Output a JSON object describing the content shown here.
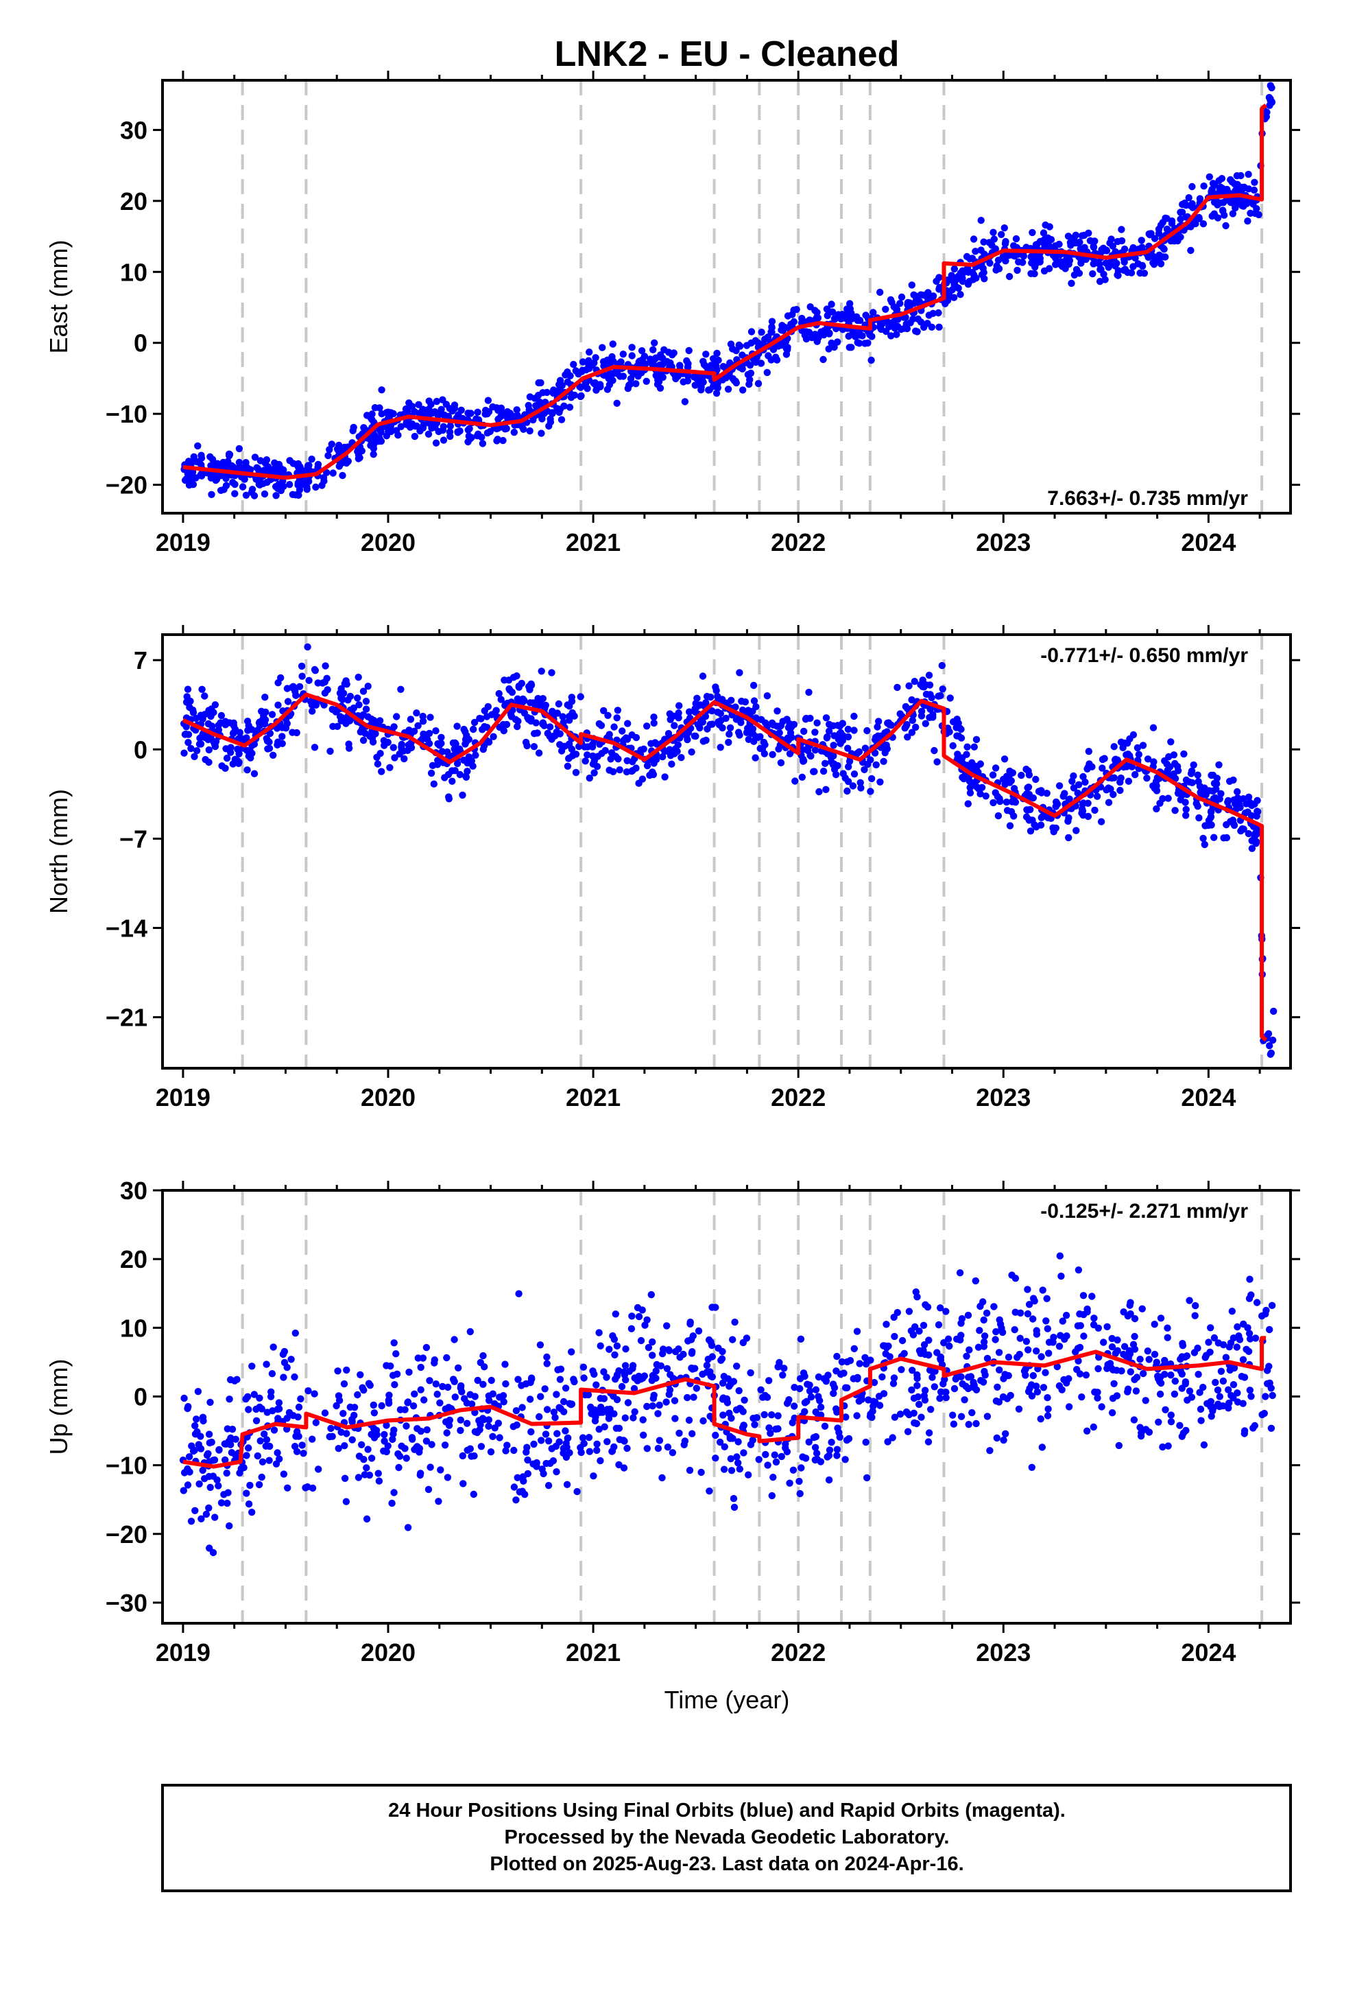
{
  "chart_data": [
    {
      "type": "scatter",
      "component": "east",
      "title": "LNK2  - EU - Cleaned",
      "ylabel": "East (mm)",
      "xlim": [
        2018.9,
        2024.4
      ],
      "ylim": [
        -24,
        37
      ],
      "yticks": [
        -20,
        -10,
        0,
        10,
        20,
        30
      ],
      "xticks": [
        2019,
        2020,
        2021,
        2022,
        2023,
        2024
      ],
      "rate_label": "7.663+/- 0.735 mm/yr",
      "rate_position": "bottom-right",
      "dashed_lines": [
        2019.29,
        2019.6,
        2020.94,
        2021.59,
        2021.81,
        2022.0,
        2022.21,
        2022.35,
        2022.71,
        2024.26
      ],
      "model_line": [
        [
          2019.0,
          -17.5
        ],
        [
          2019.3,
          -18.4
        ],
        [
          2019.5,
          -19.0
        ],
        [
          2019.65,
          -18.5
        ],
        [
          2019.8,
          -15.5
        ],
        [
          2019.95,
          -11.5
        ],
        [
          2020.1,
          -10.4
        ],
        [
          2020.3,
          -11.0
        ],
        [
          2020.5,
          -11.6
        ],
        [
          2020.65,
          -11.0
        ],
        [
          2020.8,
          -8.5
        ],
        [
          2020.95,
          -5.0
        ],
        [
          2021.1,
          -3.4
        ],
        [
          2021.3,
          -3.7
        ],
        [
          2021.59,
          -4.3
        ],
        [
          2021.59,
          -5.2
        ],
        [
          2021.7,
          -3.0
        ],
        [
          2021.85,
          -0.5
        ],
        [
          2022.0,
          2.2
        ],
        [
          2022.1,
          2.8
        ],
        [
          2022.35,
          2.0
        ],
        [
          2022.35,
          3.2
        ],
        [
          2022.5,
          4.0
        ],
        [
          2022.71,
          6.3
        ],
        [
          2022.71,
          11.2
        ],
        [
          2022.85,
          11.0
        ],
        [
          2023.0,
          13.0
        ],
        [
          2023.3,
          12.8
        ],
        [
          2023.5,
          12.0
        ],
        [
          2023.7,
          12.8
        ],
        [
          2023.9,
          17.0
        ],
        [
          2024.0,
          20.5
        ],
        [
          2024.15,
          20.8
        ],
        [
          2024.26,
          20.2
        ],
        [
          2024.26,
          33.0
        ],
        [
          2024.28,
          33.5
        ]
      ],
      "series": [
        {
          "name": "Final Orbits",
          "color": "#0000ff",
          "anchors": [
            [
              2019.0,
              -17.5
            ],
            [
              2019.3,
              -18.4
            ],
            [
              2019.5,
              -19.0
            ],
            [
              2019.65,
              -18.5
            ],
            [
              2019.8,
              -15.5
            ],
            [
              2019.95,
              -11.5
            ],
            [
              2020.1,
              -10.4
            ],
            [
              2020.3,
              -11.0
            ],
            [
              2020.5,
              -11.6
            ],
            [
              2020.65,
              -11.0
            ],
            [
              2020.8,
              -8.5
            ],
            [
              2020.95,
              -5.0
            ],
            [
              2021.1,
              -3.4
            ],
            [
              2021.3,
              -3.7
            ],
            [
              2021.55,
              -4.3
            ],
            [
              2021.7,
              -3.0
            ],
            [
              2021.85,
              -0.5
            ],
            [
              2022.0,
              2.2
            ],
            [
              2022.1,
              2.8
            ],
            [
              2022.3,
              2.0
            ],
            [
              2022.5,
              4.0
            ],
            [
              2022.7,
              6.3
            ],
            [
              2022.85,
              11.0
            ],
            [
              2023.0,
              13.0
            ],
            [
              2023.3,
              12.8
            ],
            [
              2023.5,
              12.0
            ],
            [
              2023.7,
              12.8
            ],
            [
              2023.9,
              17.0
            ],
            [
              2024.0,
              20.5
            ],
            [
              2024.15,
              20.8
            ],
            [
              2024.25,
              20.2
            ],
            [
              2024.27,
              33.5
            ],
            [
              2024.32,
              34.5
            ]
          ],
          "noise": 1.5,
          "count": 1500
        }
      ]
    },
    {
      "type": "scatter",
      "component": "north",
      "ylabel": "North (mm)",
      "xlim": [
        2018.9,
        2024.4
      ],
      "ylim": [
        -25,
        9
      ],
      "yticks": [
        -21,
        -14,
        -7,
        0,
        7
      ],
      "xticks": [
        2019,
        2020,
        2021,
        2022,
        2023,
        2024
      ],
      "rate_label": "-0.771+/- 0.650 mm/yr",
      "rate_position": "top-right",
      "dashed_lines": [
        2019.29,
        2019.6,
        2020.94,
        2021.59,
        2021.81,
        2022.0,
        2022.21,
        2022.35,
        2022.71,
        2024.26
      ],
      "model_line": [
        [
          2019.0,
          2.3
        ],
        [
          2019.15,
          1.2
        ],
        [
          2019.3,
          0.3
        ],
        [
          2019.45,
          2.0
        ],
        [
          2019.6,
          4.3
        ],
        [
          2019.75,
          3.5
        ],
        [
          2019.9,
          1.8
        ],
        [
          2020.1,
          1.0
        ],
        [
          2020.25,
          -0.5
        ],
        [
          2020.3,
          -1.0
        ],
        [
          2020.45,
          0.5
        ],
        [
          2020.6,
          3.5
        ],
        [
          2020.75,
          3.0
        ],
        [
          2020.94,
          0.5
        ],
        [
          2020.94,
          1.2
        ],
        [
          2021.1,
          0.5
        ],
        [
          2021.25,
          -0.8
        ],
        [
          2021.4,
          1.0
        ],
        [
          2021.59,
          3.7
        ],
        [
          2021.75,
          2.5
        ],
        [
          2021.9,
          0.8
        ],
        [
          2022.0,
          -0.3
        ],
        [
          2022.0,
          0.8
        ],
        [
          2022.15,
          0.0
        ],
        [
          2022.3,
          -0.8
        ],
        [
          2022.45,
          1.2
        ],
        [
          2022.6,
          3.8
        ],
        [
          2022.71,
          3.2
        ],
        [
          2022.71,
          0.5
        ],
        [
          2022.71,
          -0.5
        ],
        [
          2022.85,
          -2.0
        ],
        [
          2023.05,
          -3.5
        ],
        [
          2023.25,
          -5.2
        ],
        [
          2023.4,
          -3.5
        ],
        [
          2023.6,
          -0.8
        ],
        [
          2023.75,
          -1.8
        ],
        [
          2023.95,
          -3.8
        ],
        [
          2024.1,
          -4.8
        ],
        [
          2024.26,
          -6.0
        ],
        [
          2024.26,
          -22.5
        ],
        [
          2024.28,
          -22.8
        ]
      ],
      "series": [
        {
          "name": "Final Orbits",
          "color": "#0000ff",
          "anchors": [
            [
              2019.0,
              2.3
            ],
            [
              2019.15,
              1.2
            ],
            [
              2019.3,
              0.3
            ],
            [
              2019.45,
              2.0
            ],
            [
              2019.6,
              4.3
            ],
            [
              2019.75,
              3.5
            ],
            [
              2019.9,
              1.8
            ],
            [
              2020.1,
              1.0
            ],
            [
              2020.3,
              -1.0
            ],
            [
              2020.45,
              0.5
            ],
            [
              2020.6,
              3.5
            ],
            [
              2020.75,
              3.0
            ],
            [
              2020.92,
              0.5
            ],
            [
              2021.1,
              0.5
            ],
            [
              2021.25,
              -0.8
            ],
            [
              2021.4,
              1.0
            ],
            [
              2021.59,
              3.7
            ],
            [
              2021.75,
              2.5
            ],
            [
              2021.9,
              0.8
            ],
            [
              2022.05,
              0.4
            ],
            [
              2022.3,
              -0.8
            ],
            [
              2022.45,
              1.2
            ],
            [
              2022.6,
              3.8
            ],
            [
              2022.7,
              3.2
            ],
            [
              2022.85,
              -2.0
            ],
            [
              2023.05,
              -3.5
            ],
            [
              2023.25,
              -5.2
            ],
            [
              2023.4,
              -3.5
            ],
            [
              2023.6,
              -0.8
            ],
            [
              2023.75,
              -1.8
            ],
            [
              2023.95,
              -3.8
            ],
            [
              2024.1,
              -4.8
            ],
            [
              2024.25,
              -6.0
            ],
            [
              2024.27,
              -22.8
            ],
            [
              2024.32,
              -23.3
            ]
          ],
          "noise": 1.3,
          "count": 1400
        }
      ]
    },
    {
      "type": "scatter",
      "component": "up",
      "ylabel": "Up (mm)",
      "xlabel": "Time (year)",
      "xlim": [
        2018.9,
        2024.4
      ],
      "ylim": [
        -33,
        30
      ],
      "yticks": [
        -30,
        -20,
        -10,
        0,
        10,
        20,
        30
      ],
      "xticks": [
        2019,
        2020,
        2021,
        2022,
        2023,
        2024
      ],
      "rate_label": "-0.125+/- 2.271 mm/yr",
      "rate_position": "top-right",
      "dashed_lines": [
        2019.29,
        2019.6,
        2020.94,
        2021.59,
        2021.81,
        2022.0,
        2022.21,
        2022.35,
        2022.71,
        2024.26
      ],
      "model_line": [
        [
          2019.0,
          -9.5
        ],
        [
          2019.15,
          -10.2
        ],
        [
          2019.28,
          -9.5
        ],
        [
          2019.29,
          -5.5
        ],
        [
          2019.45,
          -4.0
        ],
        [
          2019.6,
          -4.5
        ],
        [
          2019.6,
          -2.5
        ],
        [
          2019.8,
          -4.5
        ],
        [
          2020.0,
          -3.5
        ],
        [
          2020.2,
          -3.2
        ],
        [
          2020.35,
          -2.0
        ],
        [
          2020.5,
          -1.5
        ],
        [
          2020.7,
          -4.0
        ],
        [
          2020.94,
          -3.8
        ],
        [
          2020.94,
          1.0
        ],
        [
          2021.2,
          0.5
        ],
        [
          2021.45,
          2.5
        ],
        [
          2021.59,
          1.5
        ],
        [
          2021.59,
          -4.0
        ],
        [
          2021.75,
          -5.5
        ],
        [
          2021.81,
          -5.8
        ],
        [
          2021.81,
          -6.5
        ],
        [
          2022.0,
          -6.0
        ],
        [
          2022.0,
          -3.0
        ],
        [
          2022.21,
          -3.5
        ],
        [
          2022.21,
          -0.5
        ],
        [
          2022.35,
          1.5
        ],
        [
          2022.35,
          4.0
        ],
        [
          2022.5,
          5.5
        ],
        [
          2022.71,
          4.0
        ],
        [
          2022.71,
          3.0
        ],
        [
          2022.95,
          5.0
        ],
        [
          2023.2,
          4.5
        ],
        [
          2023.45,
          6.5
        ],
        [
          2023.7,
          4.0
        ],
        [
          2023.95,
          4.5
        ],
        [
          2024.1,
          5.0
        ],
        [
          2024.26,
          4.0
        ],
        [
          2024.26,
          8.5
        ],
        [
          2024.28,
          8.5
        ]
      ],
      "series": [
        {
          "name": "Final Orbits",
          "color": "#0000ff",
          "anchors": [
            [
              2019.0,
              -9.5
            ],
            [
              2019.15,
              -10.2
            ],
            [
              2019.3,
              -7.0
            ],
            [
              2019.45,
              -4.0
            ],
            [
              2019.6,
              -4.0
            ],
            [
              2019.8,
              -4.5
            ],
            [
              2020.0,
              -3.5
            ],
            [
              2020.2,
              -3.2
            ],
            [
              2020.35,
              -2.0
            ],
            [
              2020.5,
              -1.5
            ],
            [
              2020.7,
              -4.0
            ],
            [
              2020.92,
              -3.8
            ],
            [
              2021.2,
              0.5
            ],
            [
              2021.45,
              2.5
            ],
            [
              2021.57,
              1.5
            ],
            [
              2021.75,
              -5.5
            ],
            [
              2021.9,
              -6.3
            ],
            [
              2022.1,
              -3.5
            ],
            [
              2022.28,
              0.5
            ],
            [
              2022.5,
              5.5
            ],
            [
              2022.75,
              3.5
            ],
            [
              2022.95,
              5.0
            ],
            [
              2023.2,
              4.5
            ],
            [
              2023.45,
              6.5
            ],
            [
              2023.7,
              4.0
            ],
            [
              2023.95,
              4.5
            ],
            [
              2024.1,
              5.0
            ],
            [
              2024.25,
              4.0
            ],
            [
              2024.32,
              7.5
            ]
          ],
          "noise": 5.5,
          "count": 1300
        }
      ]
    }
  ],
  "footer": {
    "line1": "24 Hour Positions Using Final Orbits (blue) and Rapid Orbits (magenta).",
    "line2": "Processed by the Nevada Geodetic Laboratory.",
    "line3": "Plotted on 2025-Aug-23. Last data on 2024-Apr-16."
  },
  "colors": {
    "points": "#0000ff",
    "model": "#ff0000",
    "dashed": "#c8c8c8",
    "frame": "#000000"
  }
}
